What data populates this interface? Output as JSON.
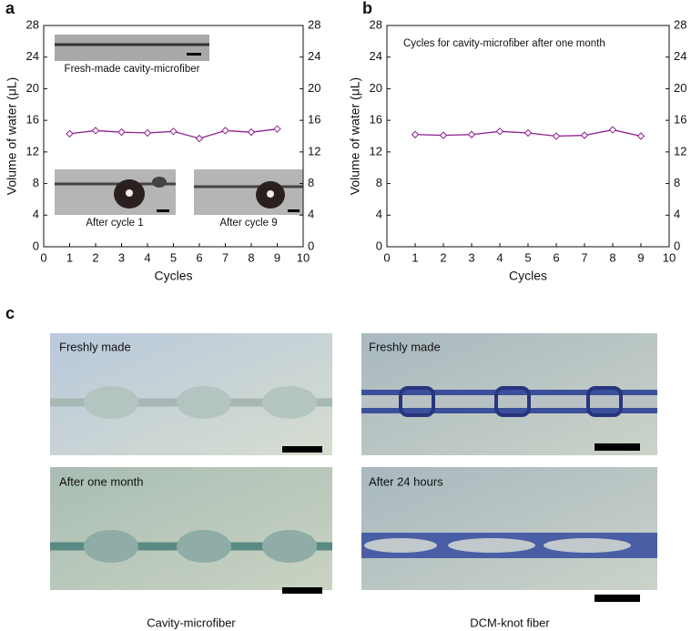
{
  "chart_data": [
    {
      "type": "line",
      "panel_label": "a",
      "xlabel": "Cycles",
      "ylabel": "Volume of water (μL)",
      "x": [
        1,
        2,
        3,
        4,
        5,
        6,
        7,
        8,
        9
      ],
      "series": [
        {
          "color": "#8e1f8e",
          "values": [
            14.3,
            14.7,
            14.5,
            14.4,
            14.6,
            13.7,
            14.7,
            14.5,
            14.9
          ]
        }
      ],
      "xlim": [
        0,
        10
      ],
      "xticks": [
        0,
        1,
        2,
        3,
        4,
        5,
        6,
        7,
        8,
        9,
        10
      ],
      "ylim": [
        0,
        28
      ],
      "yticks": [
        0,
        4,
        8,
        12,
        16,
        20,
        24,
        28
      ],
      "y2lim": [
        0,
        28
      ],
      "y2ticks": [
        0,
        4,
        8,
        12,
        16,
        20,
        24,
        28
      ],
      "annotations": [
        "Fresh-made cavity-microfiber",
        "After cycle 1",
        "After cycle 9"
      ]
    },
    {
      "type": "line",
      "panel_label": "b",
      "xlabel": "Cycles",
      "ylabel": "Volume of water (μL)",
      "x": [
        1,
        2,
        3,
        4,
        5,
        6,
        7,
        8,
        9
      ],
      "series": [
        {
          "color": "#8e1f8e",
          "values": [
            14.2,
            14.1,
            14.2,
            14.6,
            14.4,
            14.0,
            14.1,
            14.8,
            14.0
          ]
        }
      ],
      "xlim": [
        0,
        10
      ],
      "xticks": [
        0,
        1,
        2,
        3,
        4,
        5,
        6,
        7,
        8,
        9,
        10
      ],
      "ylim": [
        0,
        28
      ],
      "yticks": [
        0,
        4,
        8,
        12,
        16,
        20,
        24,
        28
      ],
      "y2lim": [
        0,
        28
      ],
      "y2ticks": [
        0,
        4,
        8,
        12,
        16,
        20,
        24,
        28
      ],
      "annotations": [
        "Cycles for cavity-microfiber after one month"
      ]
    }
  ],
  "panel_c": {
    "label": "c",
    "images": [
      "Freshly made",
      "After one month",
      "Freshly made",
      "After 24 hours"
    ],
    "captions": [
      "Cavity-microfiber",
      "DCM-knot fiber"
    ]
  }
}
